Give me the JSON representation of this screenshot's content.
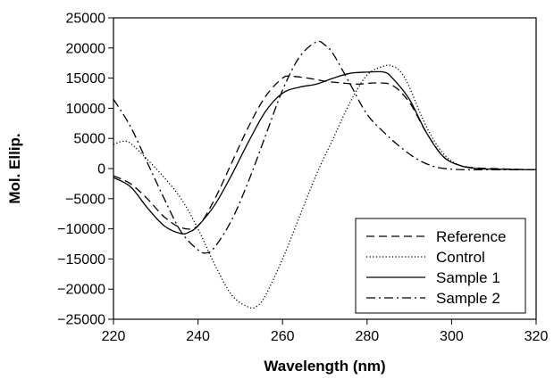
{
  "chart_data": {
    "type": "line",
    "xlabel": "Wavelength (nm)",
    "ylabel": "Mol. Ellip.",
    "xlim": [
      220,
      320
    ],
    "ylim": [
      -25000,
      25000
    ],
    "xticks": [
      220,
      240,
      260,
      280,
      300,
      320
    ],
    "yticks": [
      -25000,
      -20000,
      -15000,
      -10000,
      -5000,
      0,
      5000,
      10000,
      15000,
      20000,
      25000
    ],
    "ytick_labels": [
      "−25000",
      "−20000",
      "−15000",
      "−10000",
      "−5000",
      "0",
      "5000",
      "10000",
      "15000",
      "20000",
      "25000"
    ],
    "grid": false,
    "legend_position": "bottom-right",
    "series": [
      {
        "name": "Reference",
        "dash": "dashed",
        "x": [
          220,
          224,
          228,
          232,
          236,
          240,
          244,
          248,
          252,
          256,
          260,
          262,
          266,
          270,
          274,
          278,
          282,
          286,
          290,
          294,
          298,
          302,
          306,
          310,
          314,
          320
        ],
        "y": [
          -1200,
          -2500,
          -5000,
          -8000,
          -9800,
          -9500,
          -5000,
          1000,
          7000,
          12000,
          15000,
          15300,
          15000,
          14500,
          14200,
          14000,
          14200,
          13800,
          11000,
          6000,
          2000,
          500,
          100,
          0,
          -100,
          -200
        ]
      },
      {
        "name": "Control",
        "dash": "dotted",
        "x": [
          220,
          222,
          224,
          228,
          232,
          236,
          240,
          244,
          248,
          252,
          254,
          256,
          260,
          264,
          268,
          272,
          276,
          280,
          284,
          286,
          288,
          290,
          294,
          298,
          302,
          306,
          310,
          320
        ],
        "y": [
          4000,
          4500,
          4200,
          1500,
          -1500,
          -5000,
          -10000,
          -16000,
          -21000,
          -23000,
          -22800,
          -21000,
          -15000,
          -8000,
          -1000,
          5000,
          11000,
          15500,
          17000,
          17000,
          16000,
          13500,
          7000,
          2500,
          500,
          0,
          -100,
          -200
        ]
      },
      {
        "name": "Sample 1",
        "dash": "solid",
        "x": [
          220,
          224,
          228,
          232,
          236,
          238,
          240,
          244,
          248,
          252,
          256,
          260,
          264,
          268,
          272,
          276,
          280,
          284,
          286,
          290,
          294,
          298,
          302,
          306,
          310,
          320
        ],
        "y": [
          -1500,
          -3000,
          -6500,
          -9500,
          -10800,
          -10500,
          -9500,
          -6000,
          -1000,
          4500,
          9500,
          12500,
          13500,
          14000,
          15000,
          15800,
          16000,
          16000,
          15000,
          11500,
          6000,
          2000,
          500,
          0,
          -100,
          -200
        ]
      },
      {
        "name": "Sample 2",
        "dash": "dashdot",
        "x": [
          220,
          224,
          228,
          232,
          236,
          240,
          242,
          244,
          248,
          252,
          256,
          260,
          264,
          268,
          270,
          272,
          276,
          280,
          284,
          288,
          292,
          296,
          300,
          304,
          310,
          320
        ],
        "y": [
          11500,
          7000,
          1000,
          -5000,
          -10500,
          -13500,
          -14000,
          -13000,
          -8500,
          -2000,
          5500,
          13000,
          18500,
          21000,
          20500,
          19000,
          14000,
          9000,
          6000,
          3500,
          1500,
          300,
          -100,
          -200,
          -200,
          -200
        ]
      }
    ]
  }
}
